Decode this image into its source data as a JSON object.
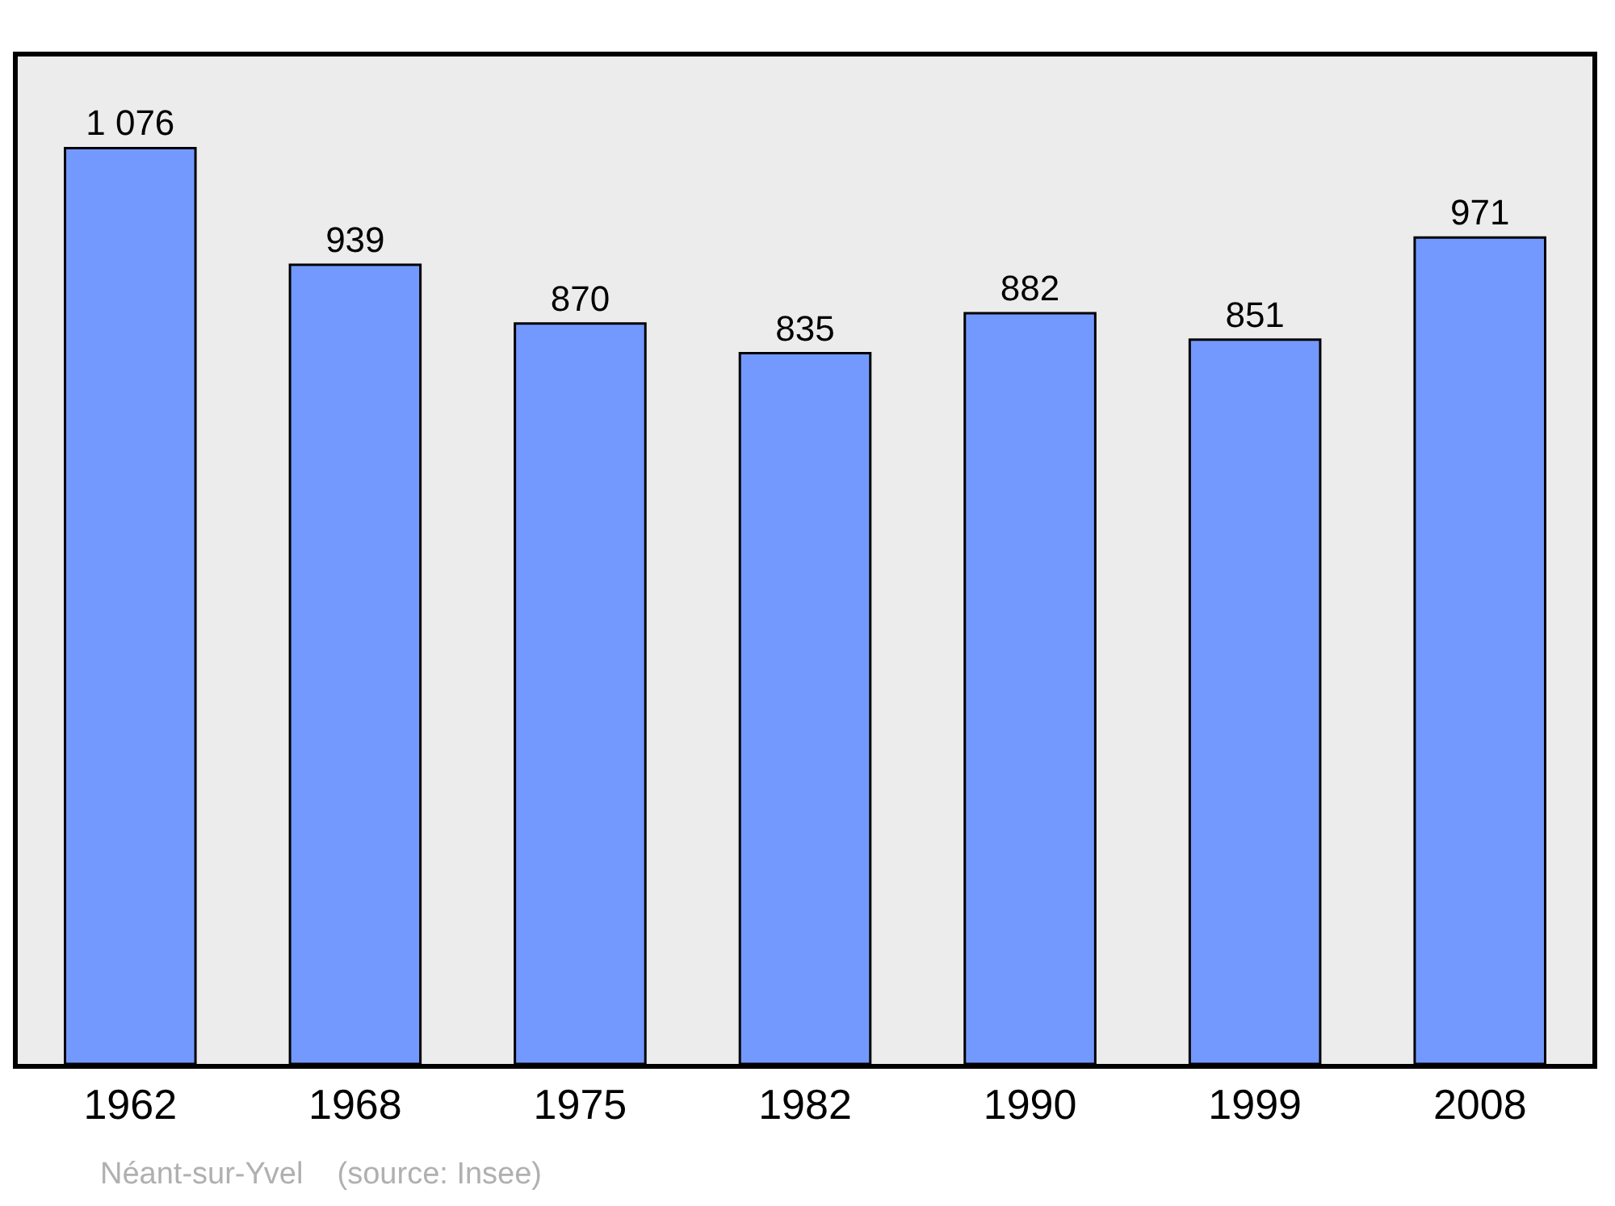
{
  "chart_data": {
    "type": "bar",
    "categories": [
      "1962",
      "1968",
      "1975",
      "1982",
      "1990",
      "1999",
      "2008"
    ],
    "values": [
      1076,
      939,
      870,
      835,
      882,
      851,
      971
    ],
    "value_labels": [
      "1 076",
      "939",
      "870",
      "835",
      "882",
      "851",
      "971"
    ],
    "color": "#7399ff",
    "grid": false,
    "annotations": [
      "Néant-sur-Yvel    (source: Insee)"
    ]
  }
}
